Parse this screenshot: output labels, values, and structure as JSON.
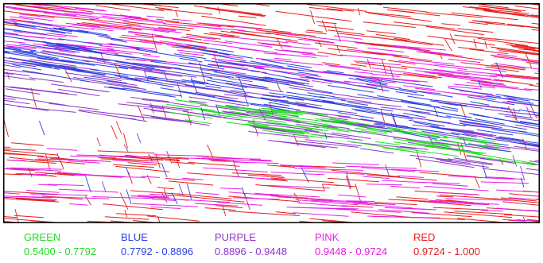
{
  "legend": [
    {
      "name": "GREEN",
      "range": "0.5400 - 0.7792",
      "color": "#22dd22"
    },
    {
      "name": "BLUE",
      "range": "0.7792 - 0.8896",
      "color": "#2b3fe0"
    },
    {
      "name": "PURPLE",
      "range": "0.8896 - 0.9448",
      "color": "#8a38c8"
    },
    {
      "name": "PINK",
      "range": "0.9448 - 0.9724",
      "color": "#e61ee6"
    },
    {
      "name": "RED",
      "range": "0.9724 - 1.000",
      "color": "#e61e1e"
    }
  ]
}
